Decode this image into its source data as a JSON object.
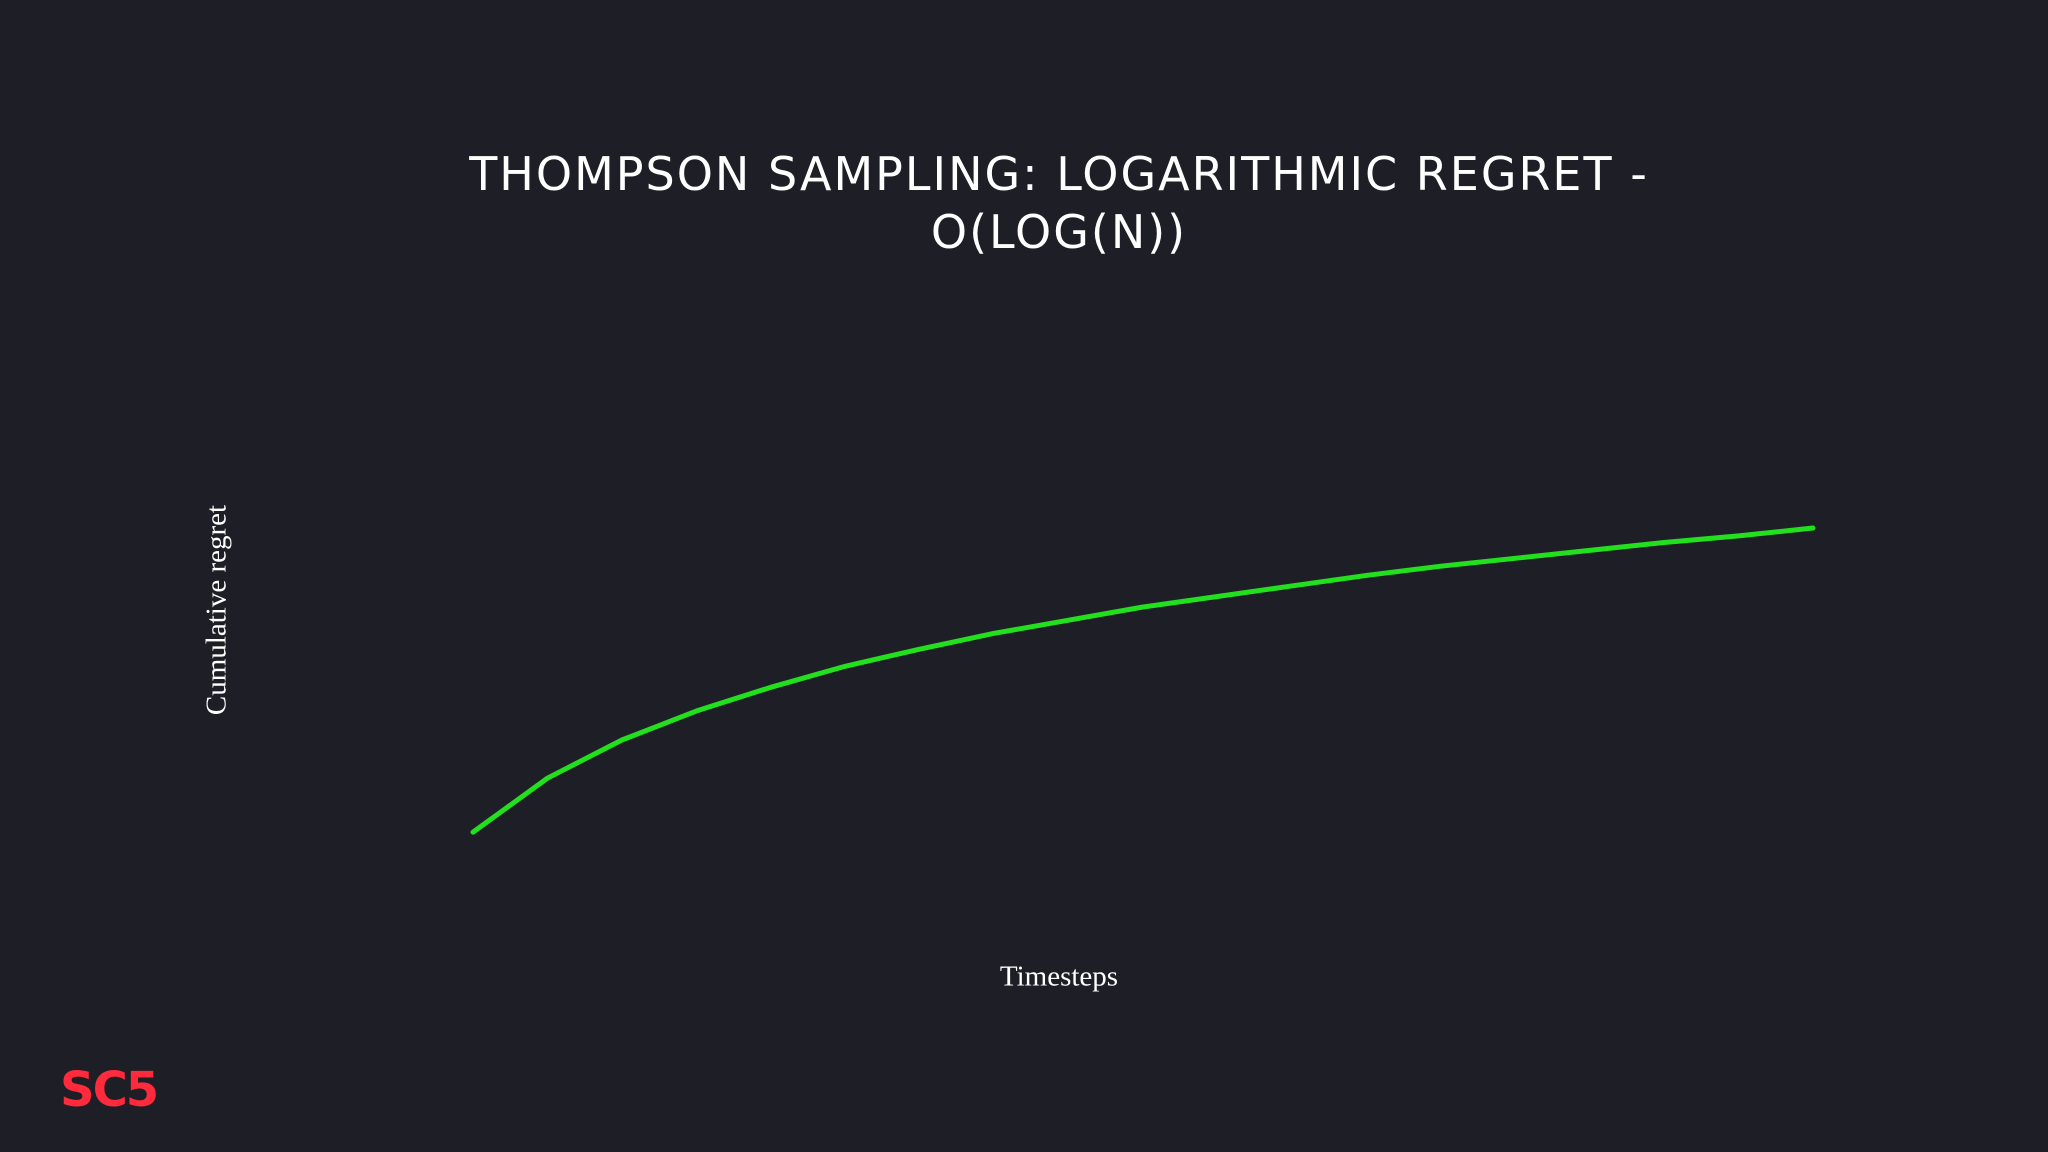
{
  "chart_data": {
    "type": "line",
    "title": "THOMPSON SAMPLING: LOGARITHMIC REGRET - O(LOG(N))",
    "x_label": "Timesteps",
    "y_label": "Cumulative regret",
    "x": [
      10,
      15,
      20,
      25,
      30,
      35,
      40,
      45,
      50,
      55,
      60,
      65,
      70,
      75,
      80,
      85,
      90,
      95,
      100
    ],
    "series": [
      {
        "color": "#22e01e",
        "values": [
          2.3,
          2.71,
          3.0,
          3.22,
          3.4,
          3.56,
          3.69,
          3.81,
          3.91,
          4.01,
          4.09,
          4.17,
          4.25,
          4.32,
          4.38,
          4.44,
          4.5,
          4.55,
          4.61
        ]
      }
    ],
    "xlim": [
      10,
      100
    ],
    "ylim": [
      0,
      6
    ],
    "grid": false
  },
  "logo": "SC5"
}
